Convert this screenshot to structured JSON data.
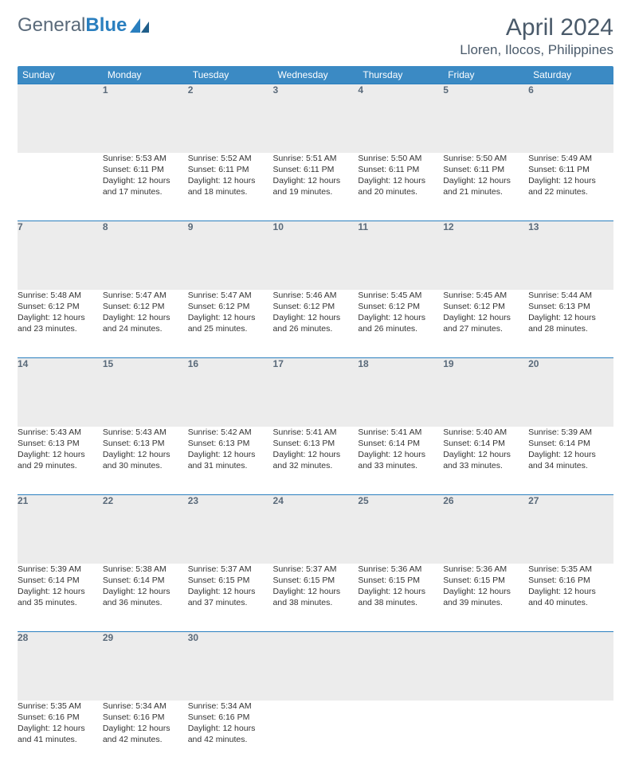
{
  "brand": {
    "part1": "General",
    "part2": "Blue"
  },
  "title": "April 2024",
  "location": "Lloren, Ilocos, Philippines",
  "colors": {
    "header_bg": "#3b8ac4",
    "header_text": "#ffffff",
    "daynum_bg": "#ececec",
    "daynum_text": "#5a6a7a",
    "divider": "#2a7fbf",
    "body_text": "#333333",
    "title_text": "#4a5a6a"
  },
  "weekdays": [
    "Sunday",
    "Monday",
    "Tuesday",
    "Wednesday",
    "Thursday",
    "Friday",
    "Saturday"
  ],
  "days": {
    "1": {
      "sunrise": "Sunrise: 5:53 AM",
      "sunset": "Sunset: 6:11 PM",
      "day1": "Daylight: 12 hours",
      "day2": "and 17 minutes."
    },
    "2": {
      "sunrise": "Sunrise: 5:52 AM",
      "sunset": "Sunset: 6:11 PM",
      "day1": "Daylight: 12 hours",
      "day2": "and 18 minutes."
    },
    "3": {
      "sunrise": "Sunrise: 5:51 AM",
      "sunset": "Sunset: 6:11 PM",
      "day1": "Daylight: 12 hours",
      "day2": "and 19 minutes."
    },
    "4": {
      "sunrise": "Sunrise: 5:50 AM",
      "sunset": "Sunset: 6:11 PM",
      "day1": "Daylight: 12 hours",
      "day2": "and 20 minutes."
    },
    "5": {
      "sunrise": "Sunrise: 5:50 AM",
      "sunset": "Sunset: 6:11 PM",
      "day1": "Daylight: 12 hours",
      "day2": "and 21 minutes."
    },
    "6": {
      "sunrise": "Sunrise: 5:49 AM",
      "sunset": "Sunset: 6:11 PM",
      "day1": "Daylight: 12 hours",
      "day2": "and 22 minutes."
    },
    "7": {
      "sunrise": "Sunrise: 5:48 AM",
      "sunset": "Sunset: 6:12 PM",
      "day1": "Daylight: 12 hours",
      "day2": "and 23 minutes."
    },
    "8": {
      "sunrise": "Sunrise: 5:47 AM",
      "sunset": "Sunset: 6:12 PM",
      "day1": "Daylight: 12 hours",
      "day2": "and 24 minutes."
    },
    "9": {
      "sunrise": "Sunrise: 5:47 AM",
      "sunset": "Sunset: 6:12 PM",
      "day1": "Daylight: 12 hours",
      "day2": "and 25 minutes."
    },
    "10": {
      "sunrise": "Sunrise: 5:46 AM",
      "sunset": "Sunset: 6:12 PM",
      "day1": "Daylight: 12 hours",
      "day2": "and 26 minutes."
    },
    "11": {
      "sunrise": "Sunrise: 5:45 AM",
      "sunset": "Sunset: 6:12 PM",
      "day1": "Daylight: 12 hours",
      "day2": "and 26 minutes."
    },
    "12": {
      "sunrise": "Sunrise: 5:45 AM",
      "sunset": "Sunset: 6:12 PM",
      "day1": "Daylight: 12 hours",
      "day2": "and 27 minutes."
    },
    "13": {
      "sunrise": "Sunrise: 5:44 AM",
      "sunset": "Sunset: 6:13 PM",
      "day1": "Daylight: 12 hours",
      "day2": "and 28 minutes."
    },
    "14": {
      "sunrise": "Sunrise: 5:43 AM",
      "sunset": "Sunset: 6:13 PM",
      "day1": "Daylight: 12 hours",
      "day2": "and 29 minutes."
    },
    "15": {
      "sunrise": "Sunrise: 5:43 AM",
      "sunset": "Sunset: 6:13 PM",
      "day1": "Daylight: 12 hours",
      "day2": "and 30 minutes."
    },
    "16": {
      "sunrise": "Sunrise: 5:42 AM",
      "sunset": "Sunset: 6:13 PM",
      "day1": "Daylight: 12 hours",
      "day2": "and 31 minutes."
    },
    "17": {
      "sunrise": "Sunrise: 5:41 AM",
      "sunset": "Sunset: 6:13 PM",
      "day1": "Daylight: 12 hours",
      "day2": "and 32 minutes."
    },
    "18": {
      "sunrise": "Sunrise: 5:41 AM",
      "sunset": "Sunset: 6:14 PM",
      "day1": "Daylight: 12 hours",
      "day2": "and 33 minutes."
    },
    "19": {
      "sunrise": "Sunrise: 5:40 AM",
      "sunset": "Sunset: 6:14 PM",
      "day1": "Daylight: 12 hours",
      "day2": "and 33 minutes."
    },
    "20": {
      "sunrise": "Sunrise: 5:39 AM",
      "sunset": "Sunset: 6:14 PM",
      "day1": "Daylight: 12 hours",
      "day2": "and 34 minutes."
    },
    "21": {
      "sunrise": "Sunrise: 5:39 AM",
      "sunset": "Sunset: 6:14 PM",
      "day1": "Daylight: 12 hours",
      "day2": "and 35 minutes."
    },
    "22": {
      "sunrise": "Sunrise: 5:38 AM",
      "sunset": "Sunset: 6:14 PM",
      "day1": "Daylight: 12 hours",
      "day2": "and 36 minutes."
    },
    "23": {
      "sunrise": "Sunrise: 5:37 AM",
      "sunset": "Sunset: 6:15 PM",
      "day1": "Daylight: 12 hours",
      "day2": "and 37 minutes."
    },
    "24": {
      "sunrise": "Sunrise: 5:37 AM",
      "sunset": "Sunset: 6:15 PM",
      "day1": "Daylight: 12 hours",
      "day2": "and 38 minutes."
    },
    "25": {
      "sunrise": "Sunrise: 5:36 AM",
      "sunset": "Sunset: 6:15 PM",
      "day1": "Daylight: 12 hours",
      "day2": "and 38 minutes."
    },
    "26": {
      "sunrise": "Sunrise: 5:36 AM",
      "sunset": "Sunset: 6:15 PM",
      "day1": "Daylight: 12 hours",
      "day2": "and 39 minutes."
    },
    "27": {
      "sunrise": "Sunrise: 5:35 AM",
      "sunset": "Sunset: 6:16 PM",
      "day1": "Daylight: 12 hours",
      "day2": "and 40 minutes."
    },
    "28": {
      "sunrise": "Sunrise: 5:35 AM",
      "sunset": "Sunset: 6:16 PM",
      "day1": "Daylight: 12 hours",
      "day2": "and 41 minutes."
    },
    "29": {
      "sunrise": "Sunrise: 5:34 AM",
      "sunset": "Sunset: 6:16 PM",
      "day1": "Daylight: 12 hours",
      "day2": "and 42 minutes."
    },
    "30": {
      "sunrise": "Sunrise: 5:34 AM",
      "sunset": "Sunset: 6:16 PM",
      "day1": "Daylight: 12 hours",
      "day2": "and 42 minutes."
    }
  },
  "layout": {
    "first_weekday_index": 1,
    "num_days": 30,
    "weeks": [
      [
        "",
        "1",
        "2",
        "3",
        "4",
        "5",
        "6"
      ],
      [
        "7",
        "8",
        "9",
        "10",
        "11",
        "12",
        "13"
      ],
      [
        "14",
        "15",
        "16",
        "17",
        "18",
        "19",
        "20"
      ],
      [
        "21",
        "22",
        "23",
        "24",
        "25",
        "26",
        "27"
      ],
      [
        "28",
        "29",
        "30",
        "",
        "",
        "",
        ""
      ]
    ]
  }
}
